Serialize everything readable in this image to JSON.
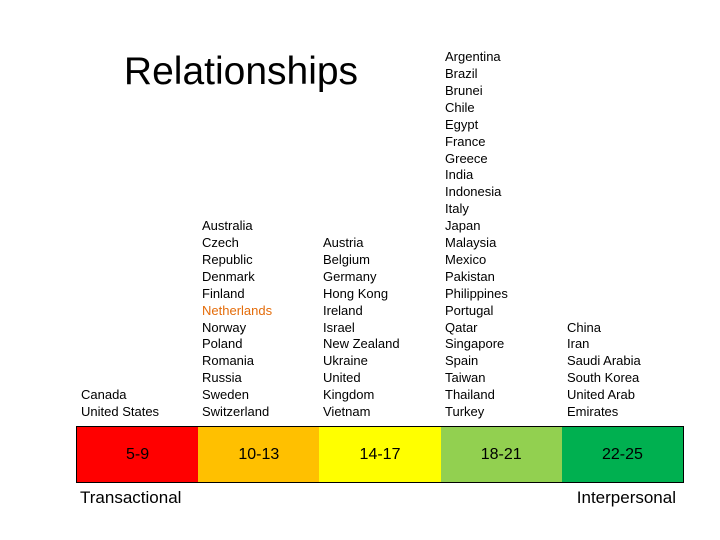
{
  "title": "Relationships",
  "left_label": "Transactional",
  "right_label": "Interpersonal",
  "columns": [
    {
      "band": "5-9",
      "color": "#ff0000",
      "items": [
        "Canada",
        "United States"
      ]
    },
    {
      "band": "10-13",
      "color": "#ffc000",
      "items": [
        "Australia",
        "Czech",
        "Republic",
        "Denmark",
        "Finland",
        {
          "text": "Netherlands",
          "color": "#e46c0a"
        },
        "Norway",
        "Poland",
        "Romania",
        "Russia",
        "Sweden",
        "Switzerland"
      ]
    },
    {
      "band": "14-17",
      "color": "#ffff00",
      "items": [
        "Austria",
        "Belgium",
        "Germany",
        "Hong Kong",
        "Ireland",
        "Israel",
        "New Zealand",
        "Ukraine",
        "United",
        "Kingdom",
        "Vietnam"
      ]
    },
    {
      "band": "18-21",
      "color": "#92d050",
      "items": [
        "Argentina",
        "Brazil",
        "Brunei",
        "Chile",
        "Egypt",
        "France",
        "Greece",
        "India",
        "Indonesia",
        "Italy",
        "Japan",
        "Malaysia",
        "Mexico",
        "Pakistan",
        "Philippines",
        "Portugal",
        "Qatar",
        "Singapore",
        "Spain",
        "Taiwan",
        "Thailand",
        "Turkey"
      ]
    },
    {
      "band": "22-25",
      "color": "#00b050",
      "items": [
        "China",
        "Iran",
        "Saudi Arabia",
        "South Korea",
        "United Arab",
        "Emirates"
      ]
    }
  ]
}
